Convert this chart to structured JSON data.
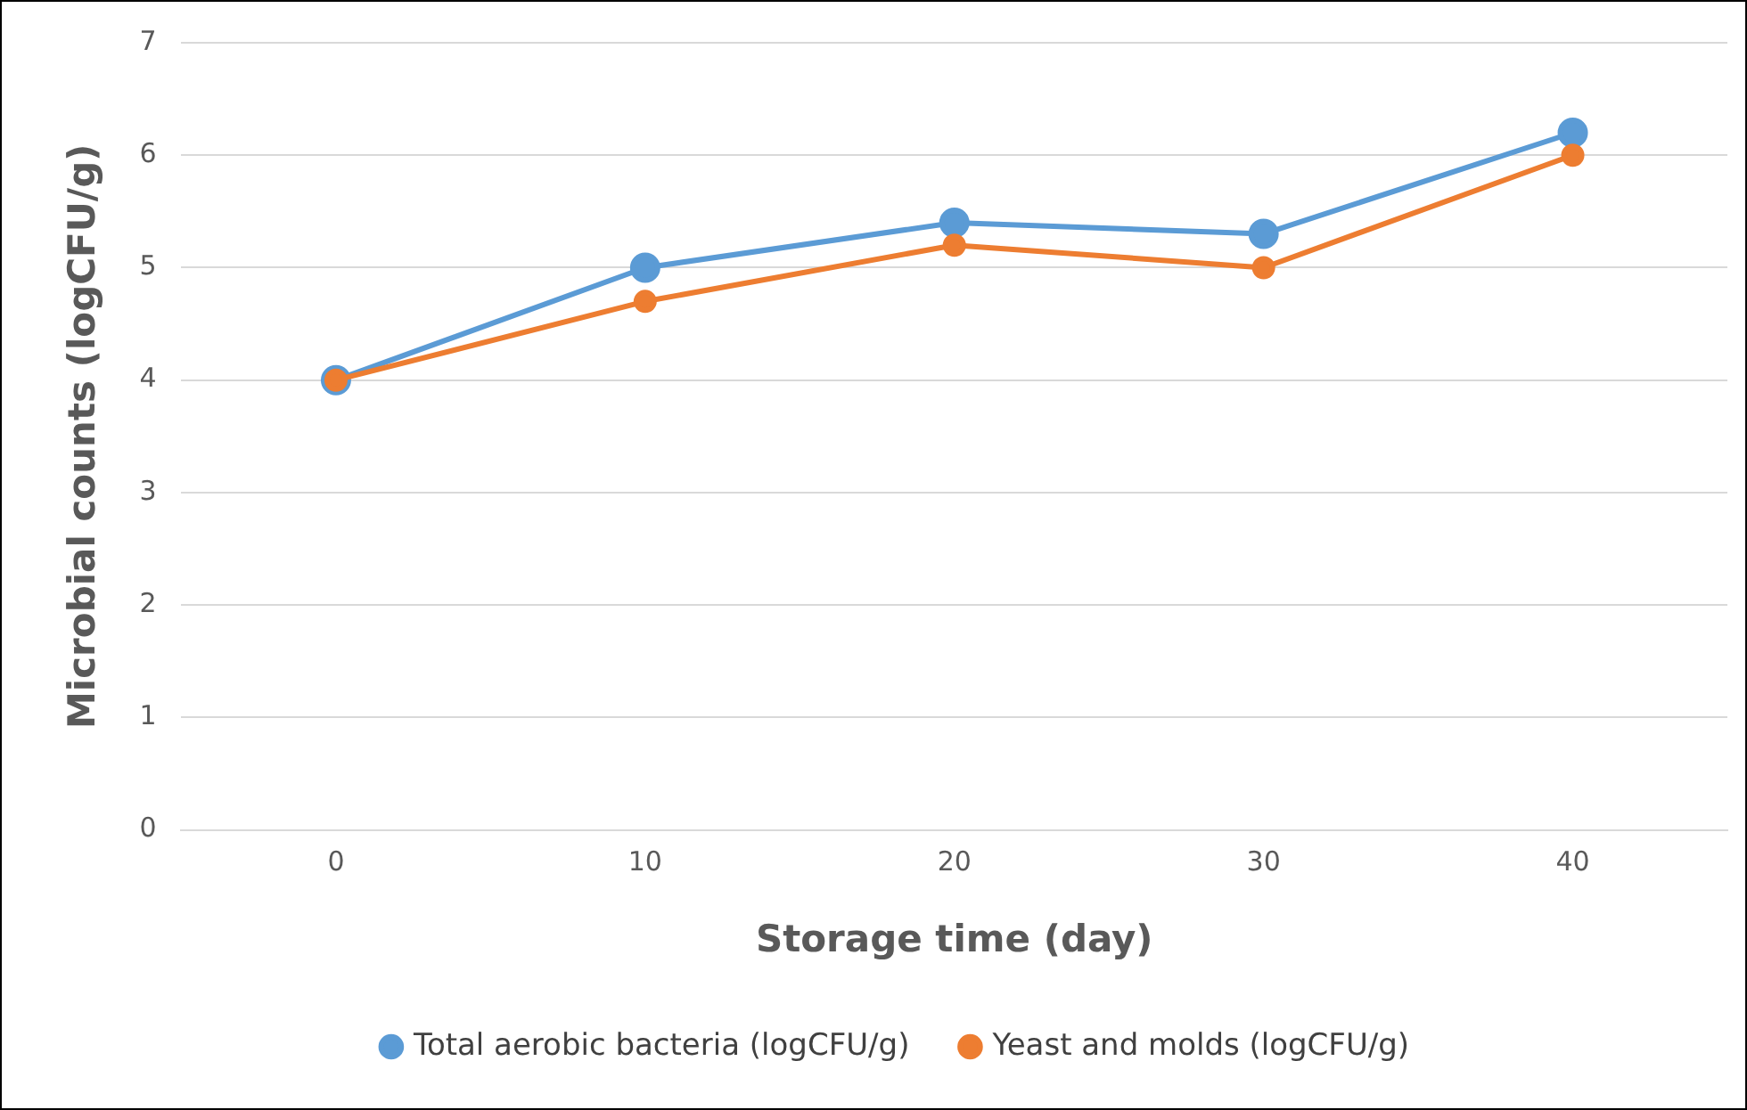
{
  "chart_data": {
    "type": "line",
    "xlabel": "Storage time (day)",
    "ylabel": "Microbial counts (logCFU/g)",
    "categories": [
      "0",
      "10",
      "20",
      "30",
      "40"
    ],
    "series": [
      {
        "name": "Total aerobic bacteria (logCFU/g)",
        "color": "#5b9bd5",
        "values": [
          4,
          5,
          5.4,
          5.3,
          6.2
        ]
      },
      {
        "name": "Yeast and molds (logCFU/g)",
        "color": "#ed7d31",
        "values": [
          4,
          4.7,
          5.2,
          5.0,
          6.0
        ]
      }
    ],
    "ylim": [
      0,
      7
    ],
    "yticks": [
      0,
      1,
      2,
      3,
      4,
      5,
      6,
      7
    ],
    "grid": "y",
    "legend": "bottom",
    "marker": "circle",
    "line_style": "solid"
  }
}
